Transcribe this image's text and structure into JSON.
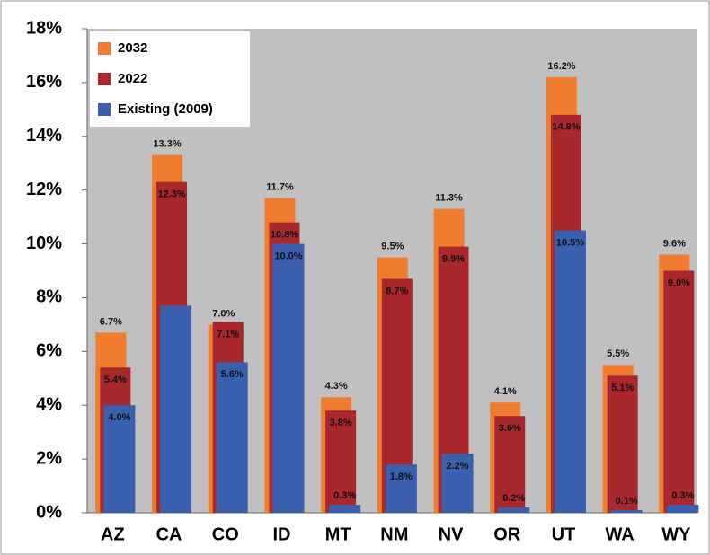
{
  "chart_data": {
    "type": "bar",
    "categories": [
      "AZ",
      "CA",
      "CO",
      "ID",
      "MT",
      "NM",
      "NV",
      "OR",
      "UT",
      "WA",
      "WY"
    ],
    "series": [
      {
        "name": "2032",
        "color": "#f07c30",
        "values": [
          6.7,
          13.3,
          7.0,
          11.7,
          4.3,
          9.5,
          11.3,
          4.1,
          16.2,
          5.5,
          9.6
        ],
        "value_labels": [
          "6.7%",
          "13.3%",
          "7.0%",
          "11.7%",
          "4.3%",
          "9.5%",
          "11.3%",
          "4.1%",
          "16.2%",
          "5.5%",
          "9.6%"
        ]
      },
      {
        "name": "2022",
        "color": "#a8282e",
        "values": [
          5.4,
          12.3,
          7.1,
          10.8,
          3.8,
          8.7,
          9.9,
          3.6,
          14.8,
          5.1,
          9.0
        ],
        "value_labels": [
          "5.4%",
          "12.3%",
          "7.1%",
          "10.8%",
          "3.8%",
          "8.7%",
          "9.9%",
          "3.6%",
          "14.8%",
          "5.1%",
          "9.0%"
        ]
      },
      {
        "name": "Existing (2009)",
        "color": "#3a5fae",
        "values": [
          4.0,
          7.7,
          5.6,
          10.0,
          0.3,
          1.8,
          2.2,
          0.2,
          10.5,
          0.1,
          0.3
        ],
        "value_labels": [
          "4.0%",
          null,
          "5.6%",
          "10.0%",
          "0.3%",
          "1.8%",
          "2.2%",
          "0.2%",
          "10.5%",
          "0.1%",
          "0.3%"
        ]
      }
    ],
    "ylim": [
      0,
      18
    ],
    "yticks": [
      {
        "value": 0,
        "label": "0%"
      },
      {
        "value": 2,
        "label": "2%"
      },
      {
        "value": 4,
        "label": "4%"
      },
      {
        "value": 6,
        "label": "6%"
      },
      {
        "value": 8,
        "label": "8%"
      },
      {
        "value": 10,
        "label": "10%"
      },
      {
        "value": 12,
        "label": "12%"
      },
      {
        "value": 14,
        "label": "14%"
      },
      {
        "value": 16,
        "label": "16%"
      },
      {
        "value": 18,
        "label": "18%"
      }
    ],
    "legend": "upper left"
  }
}
